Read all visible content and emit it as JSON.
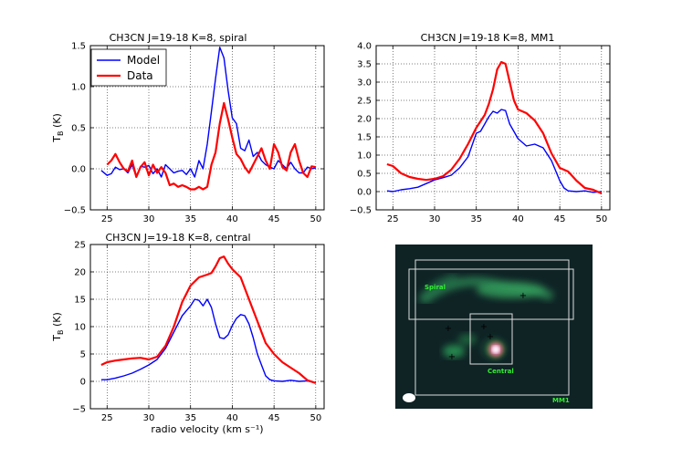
{
  "colors": {
    "model": "#0000ff",
    "data": "#ff0000"
  },
  "legend": {
    "model_label": "Model",
    "data_label": "Data"
  },
  "shared": {
    "xlabel": "radio velocity (km s⁻¹)",
    "ylabel": "Tʙ (K)"
  },
  "chart_data": [
    {
      "type": "line",
      "title": "CH3CN J=19-18 K=8, spiral",
      "xlabel": "",
      "ylabel": "T_B (K)",
      "xlim": [
        23,
        51
      ],
      "ylim": [
        -0.5,
        1.5
      ],
      "xticks": [
        25,
        30,
        35,
        40,
        45,
        50
      ],
      "yticks": [
        -0.5,
        0.0,
        0.5,
        1.0,
        1.5
      ],
      "xtick_labels": [
        "25",
        "30",
        "35",
        "40",
        "45",
        "50"
      ],
      "ytick_labels": [
        "−0.5",
        "0.0",
        "0.5",
        "1.0",
        "1.5"
      ],
      "grid": true,
      "legend_position": "top-left",
      "series": [
        {
          "name": "Model",
          "x": [
            24.3,
            25,
            25.5,
            26,
            26.5,
            27,
            27.5,
            28,
            28.5,
            29,
            29.5,
            30,
            30.5,
            31,
            31.5,
            32,
            32.5,
            33,
            33.5,
            34,
            34.5,
            35,
            35.5,
            36,
            36.5,
            37,
            37.5,
            38,
            38.5,
            39,
            39.5,
            40,
            40.5,
            41,
            41.5,
            42,
            42.5,
            43,
            43.5,
            44,
            44.5,
            45,
            45.5,
            46,
            46.5,
            47,
            47.5,
            48,
            48.5,
            49,
            49.5,
            50
          ],
          "y": [
            -0.02,
            -0.08,
            -0.06,
            0.02,
            -0.01,
            0.0,
            -0.05,
            0.05,
            -0.1,
            0.03,
            0.02,
            0.04,
            -0.06,
            0.0,
            -0.1,
            0.05,
            0.0,
            -0.05,
            -0.03,
            -0.02,
            -0.07,
            0.0,
            -0.1,
            0.1,
            0.0,
            0.3,
            0.7,
            1.1,
            1.48,
            1.35,
            0.95,
            0.62,
            0.55,
            0.25,
            0.22,
            0.35,
            0.15,
            0.2,
            0.1,
            0.05,
            0.02,
            0.0,
            0.1,
            0.05,
            0.0,
            0.08,
            0.0,
            -0.05,
            -0.05,
            0.02,
            0.0,
            0.01
          ]
        },
        {
          "name": "Data",
          "x": [
            25,
            25.5,
            26,
            26.5,
            27,
            27.5,
            28,
            28.5,
            29,
            29.5,
            30,
            30.5,
            31,
            31.5,
            32,
            32.5,
            33,
            33.5,
            34,
            34.5,
            35,
            35.5,
            36,
            36.5,
            37,
            37.5,
            38,
            38.5,
            39,
            39.5,
            40,
            40.5,
            41,
            41.5,
            42,
            42.5,
            43,
            43.5,
            44,
            44.5,
            45,
            45.5,
            46,
            46.5,
            47,
            47.5,
            48,
            48.5,
            49,
            49.5,
            50
          ],
          "y": [
            0.05,
            0.1,
            0.18,
            0.08,
            0.0,
            -0.03,
            0.1,
            -0.1,
            0.02,
            0.08,
            -0.08,
            0.05,
            -0.05,
            0.02,
            -0.05,
            -0.2,
            -0.18,
            -0.22,
            -0.2,
            -0.22,
            -0.25,
            -0.25,
            -0.22,
            -0.25,
            -0.22,
            0.05,
            0.2,
            0.55,
            0.8,
            0.6,
            0.38,
            0.18,
            0.12,
            0.02,
            -0.05,
            0.05,
            0.15,
            0.25,
            0.1,
            0.0,
            0.3,
            0.2,
            0.02,
            -0.02,
            0.2,
            0.3,
            0.1,
            -0.05,
            -0.1,
            0.03,
            0.02
          ]
        }
      ]
    },
    {
      "type": "line",
      "title": "CH3CN J=19-18 K=8, MM1",
      "xlabel": "",
      "ylabel": "",
      "xlim": [
        23,
        51
      ],
      "ylim": [
        -0.5,
        4.0
      ],
      "xticks": [
        25,
        30,
        35,
        40,
        45,
        50
      ],
      "yticks": [
        -0.5,
        0.0,
        0.5,
        1.0,
        1.5,
        2.0,
        2.5,
        3.0,
        3.5,
        4.0
      ],
      "xtick_labels": [
        "25",
        "30",
        "35",
        "40",
        "45",
        "50"
      ],
      "ytick_labels": [
        "−0.5",
        "0.0",
        "0.5",
        "1.0",
        "1.5",
        "2.0",
        "2.5",
        "3.0",
        "3.5",
        "4.0"
      ],
      "grid": true,
      "series": [
        {
          "name": "Model",
          "x": [
            24.3,
            25,
            26,
            27,
            28,
            29,
            30,
            31,
            32,
            33,
            34,
            35,
            35.5,
            36,
            36.5,
            37,
            37.5,
            38,
            38.5,
            39,
            40,
            41,
            42,
            43,
            44,
            45,
            45.5,
            46,
            47,
            48,
            49,
            50
          ],
          "y": [
            0.02,
            0.0,
            0.05,
            0.08,
            0.12,
            0.22,
            0.32,
            0.38,
            0.45,
            0.65,
            0.95,
            1.6,
            1.65,
            1.85,
            2.05,
            2.2,
            2.15,
            2.25,
            2.22,
            1.85,
            1.45,
            1.25,
            1.3,
            1.2,
            0.85,
            0.3,
            0.1,
            0.02,
            0.0,
            0.02,
            -0.02,
            0.0
          ]
        },
        {
          "name": "Data",
          "x": [
            24.3,
            25,
            26,
            27,
            28,
            29,
            30,
            31,
            32,
            33,
            34,
            35,
            36,
            36.5,
            37,
            37.5,
            38,
            38.5,
            39,
            39.5,
            40,
            41,
            42,
            43,
            44,
            45,
            46,
            47,
            48,
            49,
            50
          ],
          "y": [
            0.75,
            0.7,
            0.5,
            0.4,
            0.35,
            0.32,
            0.35,
            0.42,
            0.6,
            0.9,
            1.3,
            1.75,
            2.1,
            2.4,
            2.8,
            3.35,
            3.55,
            3.5,
            3.0,
            2.5,
            2.25,
            2.15,
            1.95,
            1.6,
            1.05,
            0.65,
            0.55,
            0.3,
            0.1,
            0.05,
            -0.05
          ]
        }
      ]
    },
    {
      "type": "line",
      "title": "CH3CN J=19-18 K=8, central",
      "xlabel": "radio velocity (km s⁻¹)",
      "ylabel": "T_B (K)",
      "xlim": [
        23,
        51
      ],
      "ylim": [
        -5,
        25
      ],
      "xticks": [
        25,
        30,
        35,
        40,
        45,
        50
      ],
      "yticks": [
        -5,
        0,
        5,
        10,
        15,
        20,
        25
      ],
      "xtick_labels": [
        "25",
        "30",
        "35",
        "40",
        "45",
        "50"
      ],
      "ytick_labels": [
        "−5",
        "0",
        "5",
        "10",
        "15",
        "20",
        "25"
      ],
      "grid": true,
      "series": [
        {
          "name": "Model",
          "x": [
            24.3,
            25,
            26,
            27,
            28,
            29,
            30,
            31,
            32,
            33,
            34,
            35,
            35.5,
            36,
            36.5,
            37,
            37.5,
            38,
            38.5,
            39,
            39.5,
            40,
            40.5,
            41,
            41.5,
            42,
            42.5,
            43,
            43.5,
            44,
            44.5,
            45,
            46,
            47,
            48,
            49,
            50
          ],
          "y": [
            0.3,
            0.3,
            0.6,
            1.0,
            1.5,
            2.2,
            3.0,
            4.0,
            6.0,
            9.0,
            12.0,
            13.8,
            15.0,
            14.8,
            13.8,
            15.0,
            13.5,
            10.5,
            8.0,
            7.8,
            8.5,
            10.2,
            11.5,
            12.2,
            12.0,
            10.5,
            8.0,
            5.0,
            3.0,
            1.0,
            0.3,
            0.1,
            0.0,
            0.2,
            0.0,
            0.1,
            -0.3
          ]
        },
        {
          "name": "Data",
          "x": [
            24.3,
            25,
            26,
            27,
            28,
            29,
            30,
            31,
            32,
            33,
            34,
            35,
            36,
            37,
            37.5,
            38,
            38.5,
            39,
            39.5,
            40,
            41,
            42,
            43,
            44,
            45,
            46,
            47,
            48,
            49,
            50
          ],
          "y": [
            3.0,
            3.5,
            3.8,
            4.0,
            4.2,
            4.3,
            4.0,
            4.5,
            6.5,
            10.0,
            14.5,
            17.5,
            19.0,
            19.5,
            19.8,
            21.0,
            22.5,
            22.8,
            21.5,
            20.5,
            19.0,
            15.0,
            11.0,
            7.0,
            5.0,
            3.5,
            2.5,
            1.5,
            0.2,
            -0.3
          ]
        }
      ]
    }
  ],
  "map": {
    "region_labels": {
      "spiral": "Spiral",
      "central": "Central",
      "mm1": "MM1"
    },
    "marker_symbol": "+",
    "beam_label": "beam"
  }
}
